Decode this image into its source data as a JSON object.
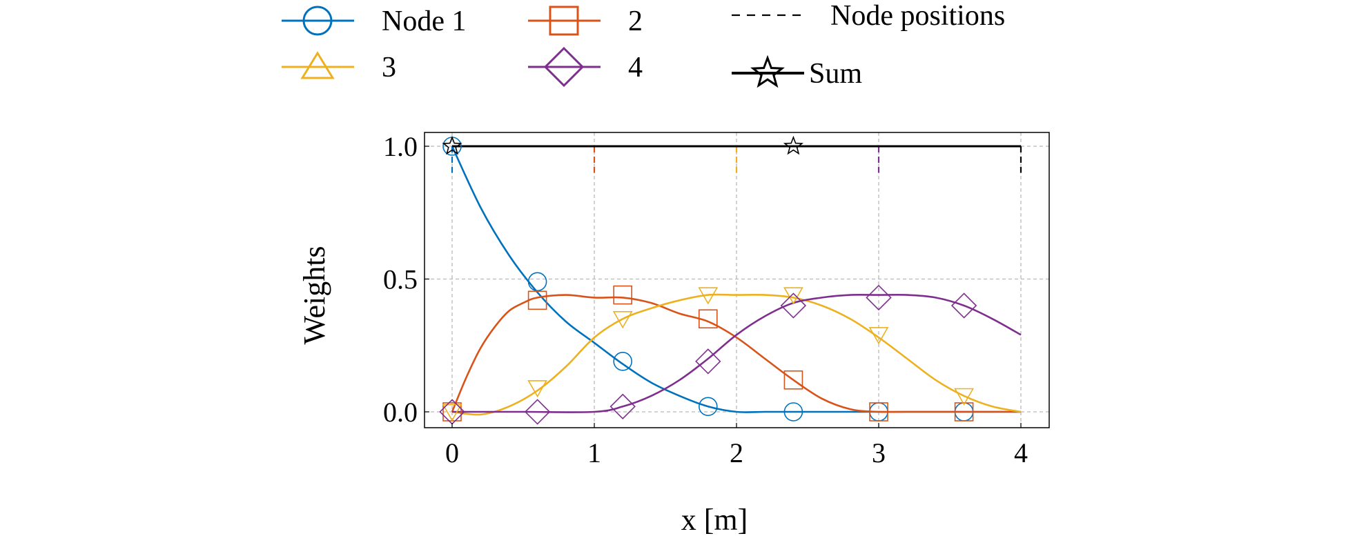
{
  "chart_data": {
    "type": "line",
    "title": "",
    "xlabel": "x [m]",
    "ylabel": "Weights",
    "xlim": [
      -0.17,
      4.2
    ],
    "ylim": [
      -0.06,
      1.05
    ],
    "xticks": [
      0,
      1,
      2,
      3,
      4
    ],
    "xtick_labels": [
      "0",
      "1",
      "2",
      "3",
      "4"
    ],
    "yticks": [
      0.0,
      0.5,
      1.0
    ],
    "ytick_labels": [
      "0.0",
      "0.5",
      "1.0"
    ],
    "grid": true,
    "legend_position": "above plot",
    "legend": [
      {
        "label": "Node 1",
        "series": "node1"
      },
      {
        "label": "2",
        "series": "node2"
      },
      {
        "label": "Node positions",
        "series": "node_positions"
      },
      {
        "label": "3",
        "series": "node3"
      },
      {
        "label": "4",
        "series": "node4"
      },
      {
        "label": "Sum",
        "series": "sum"
      }
    ],
    "node_positions": [
      0,
      1,
      2,
      3,
      4
    ],
    "series": [
      {
        "id": "node1",
        "name": "Node 1",
        "color": "#0072BD",
        "marker": "circle",
        "x": [
          0,
          0.2,
          0.4,
          0.6,
          0.8,
          1.0,
          1.2,
          1.4,
          1.6,
          1.8,
          2.0,
          2.2,
          2.4,
          2.6,
          2.8,
          3.0,
          3.2,
          3.4,
          3.6,
          3.8,
          4.0
        ],
        "y": [
          1.0,
          0.77,
          0.59,
          0.45,
          0.34,
          0.26,
          0.18,
          0.11,
          0.06,
          0.02,
          0.0,
          0.0,
          0.0,
          0.0,
          0.0,
          0.0,
          0.0,
          0.0,
          0.0,
          0.0,
          0.0
        ],
        "marker_x": [
          0,
          0.6,
          1.2,
          1.8,
          2.4,
          3.0,
          3.6
        ],
        "marker_y": [
          1.0,
          0.49,
          0.19,
          0.02,
          0.0,
          0.0,
          0.0
        ]
      },
      {
        "id": "node2",
        "name": "2",
        "color": "#D95319",
        "marker": "square",
        "x": [
          0,
          0.1,
          0.2,
          0.3,
          0.4,
          0.5,
          0.6,
          0.8,
          1.0,
          1.2,
          1.4,
          1.6,
          1.8,
          2.0,
          2.2,
          2.4,
          2.6,
          2.8,
          3.0,
          3.2,
          3.4,
          3.6,
          3.8,
          4.0
        ],
        "y": [
          0.0,
          0.13,
          0.24,
          0.32,
          0.38,
          0.41,
          0.43,
          0.44,
          0.43,
          0.43,
          0.41,
          0.37,
          0.34,
          0.28,
          0.2,
          0.12,
          0.05,
          0.01,
          0.0,
          0.0,
          0.0,
          0.0,
          0.0,
          0.0
        ],
        "marker_x": [
          0,
          0.6,
          1.2,
          1.8,
          2.4,
          3.0,
          3.6
        ],
        "marker_y": [
          0.0,
          0.42,
          0.44,
          0.35,
          0.12,
          0.0,
          0.0
        ]
      },
      {
        "id": "node3",
        "name": "3",
        "color": "#EDB120",
        "marker": "triangle",
        "x": [
          0,
          0.2,
          0.4,
          0.6,
          0.8,
          1.0,
          1.2,
          1.4,
          1.6,
          1.8,
          2.0,
          2.2,
          2.4,
          2.6,
          2.8,
          3.0,
          3.2,
          3.4,
          3.6,
          3.8,
          4.0
        ],
        "y": [
          0.0,
          -0.01,
          0.02,
          0.08,
          0.17,
          0.28,
          0.35,
          0.39,
          0.42,
          0.44,
          0.44,
          0.44,
          0.43,
          0.4,
          0.35,
          0.28,
          0.2,
          0.12,
          0.06,
          0.02,
          0.0
        ],
        "marker_x": [
          0,
          0.6,
          1.2,
          1.8,
          2.4,
          3.0,
          3.6
        ],
        "marker_y": [
          0.0,
          0.09,
          0.35,
          0.44,
          0.44,
          0.29,
          0.06
        ]
      },
      {
        "id": "node4",
        "name": "4",
        "color": "#7E2F8E",
        "marker": "diamond",
        "x": [
          0,
          0.5,
          1.0,
          1.2,
          1.4,
          1.6,
          1.8,
          2.0,
          2.2,
          2.4,
          2.6,
          2.8,
          3.0,
          3.2,
          3.4,
          3.6,
          3.8,
          4.0
        ],
        "y": [
          0.0,
          0.0,
          0.0,
          0.02,
          0.06,
          0.12,
          0.2,
          0.29,
          0.36,
          0.41,
          0.43,
          0.44,
          0.44,
          0.44,
          0.43,
          0.4,
          0.35,
          0.29
        ],
        "marker_x": [
          0,
          0.6,
          1.2,
          1.8,
          2.4,
          3.0,
          3.6
        ],
        "marker_y": [
          0.0,
          0.0,
          0.02,
          0.19,
          0.4,
          0.43,
          0.4
        ]
      },
      {
        "id": "sum",
        "name": "Sum",
        "color": "#000000",
        "marker": "star",
        "x": [
          0,
          4
        ],
        "y": [
          1.0,
          1.0
        ],
        "marker_x": [
          0,
          2.4
        ],
        "marker_y": [
          1.0,
          1.0
        ]
      }
    ]
  }
}
